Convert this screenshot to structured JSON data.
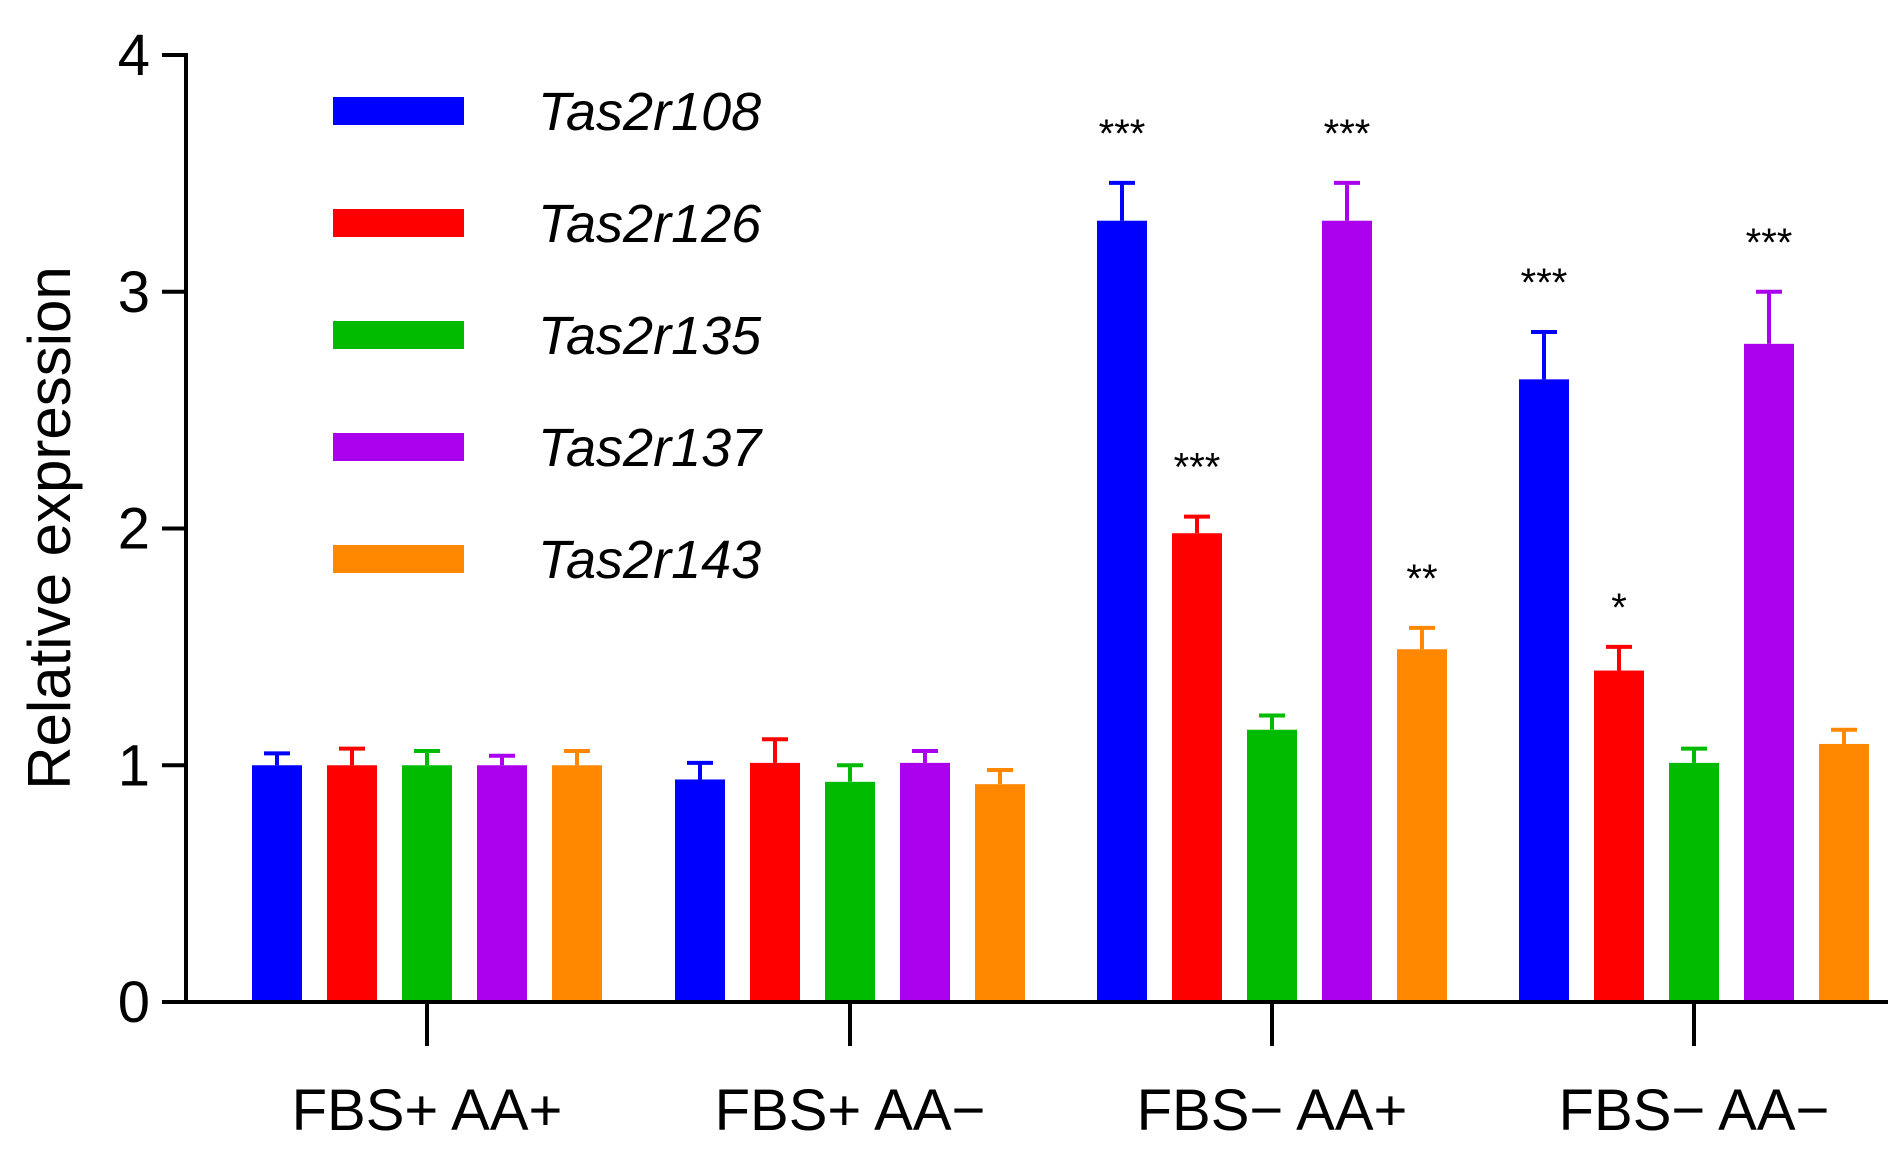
{
  "chart_data": {
    "type": "bar",
    "title": "",
    "xlabel": "",
    "ylabel": "Relative expression",
    "ylim": [
      0,
      4
    ],
    "yticks": [
      "0",
      "1",
      "2",
      "3",
      "4"
    ],
    "categories": [
      "FBS+ AA+",
      "FBS+ AA−",
      "FBS− AA+",
      "FBS− AA−"
    ],
    "legend_position": "top-left",
    "series": [
      {
        "name": "Tas2r108",
        "color": "#0000ff",
        "values": [
          1.0,
          0.94,
          3.3,
          2.63
        ],
        "errors": [
          0.05,
          0.07,
          0.16,
          0.2
        ],
        "significance": [
          "",
          "",
          "***",
          "***"
        ]
      },
      {
        "name": "Tas2r126",
        "color": "#ff0000",
        "values": [
          1.0,
          1.01,
          1.98,
          1.4
        ],
        "errors": [
          0.07,
          0.1,
          0.07,
          0.1
        ],
        "significance": [
          "",
          "",
          "***",
          "*"
        ]
      },
      {
        "name": "Tas2r135",
        "color": "#00bb00",
        "values": [
          1.0,
          0.93,
          1.15,
          1.01
        ],
        "errors": [
          0.06,
          0.07,
          0.06,
          0.06
        ],
        "significance": [
          "",
          "",
          "",
          ""
        ]
      },
      {
        "name": "Tas2r137",
        "color": "#aa00ee",
        "values": [
          1.0,
          1.01,
          3.3,
          2.78
        ],
        "errors": [
          0.04,
          0.05,
          0.16,
          0.22
        ],
        "significance": [
          "",
          "",
          "***",
          "***"
        ]
      },
      {
        "name": "Tas2r143",
        "color": "#ff8800",
        "values": [
          1.0,
          0.92,
          1.49,
          1.09
        ],
        "errors": [
          0.06,
          0.06,
          0.09,
          0.06
        ],
        "significance": [
          "",
          "",
          "**",
          ""
        ]
      }
    ]
  }
}
